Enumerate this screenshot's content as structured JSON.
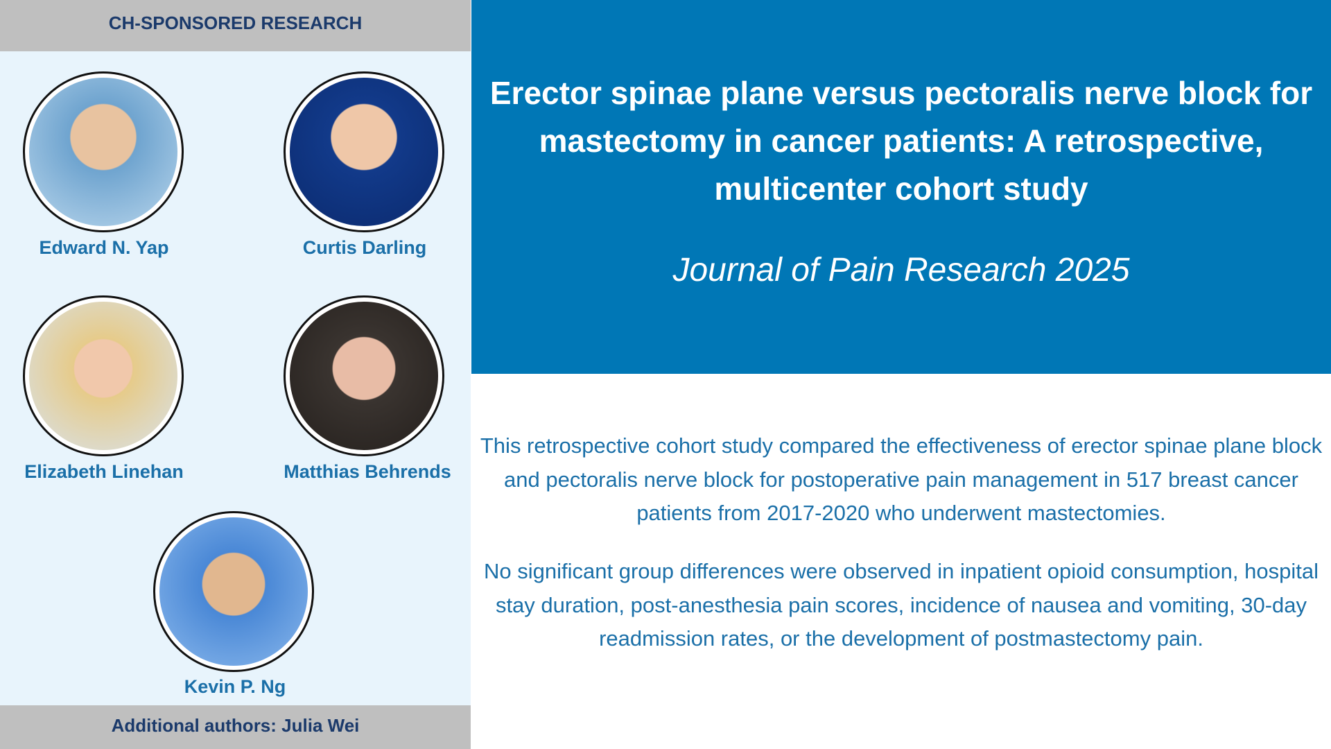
{
  "header": {
    "label": "CH-SPONSORED RESEARCH"
  },
  "authors": [
    {
      "name": "Edward N. Yap"
    },
    {
      "name": "Curtis Darling"
    },
    {
      "name": "Elizabeth Linehan"
    },
    {
      "name": "Matthias Behrends"
    },
    {
      "name": "Kevin P. Ng"
    }
  ],
  "footer": {
    "label": "Additional authors: Julia Wei"
  },
  "article": {
    "title": "Erector spinae plane versus pectoralis nerve block for mastectomy in cancer patients: A retrospective, multicenter cohort study",
    "journal": "Journal of Pain Research 2025",
    "paragraphs": [
      "This retrospective cohort study compared the effectiveness of erector spinae plane block and pectoralis nerve block for postoperative pain management in 517 breast cancer patients from 2017-2020 who underwent mastectomies.",
      "No significant group differences were observed in inpatient opioid consumption, hospital stay duration, post-anesthesia pain scores, incidence of nausea and vomiting, 30-day readmission rates, or the development of postmastectomy pain."
    ]
  }
}
